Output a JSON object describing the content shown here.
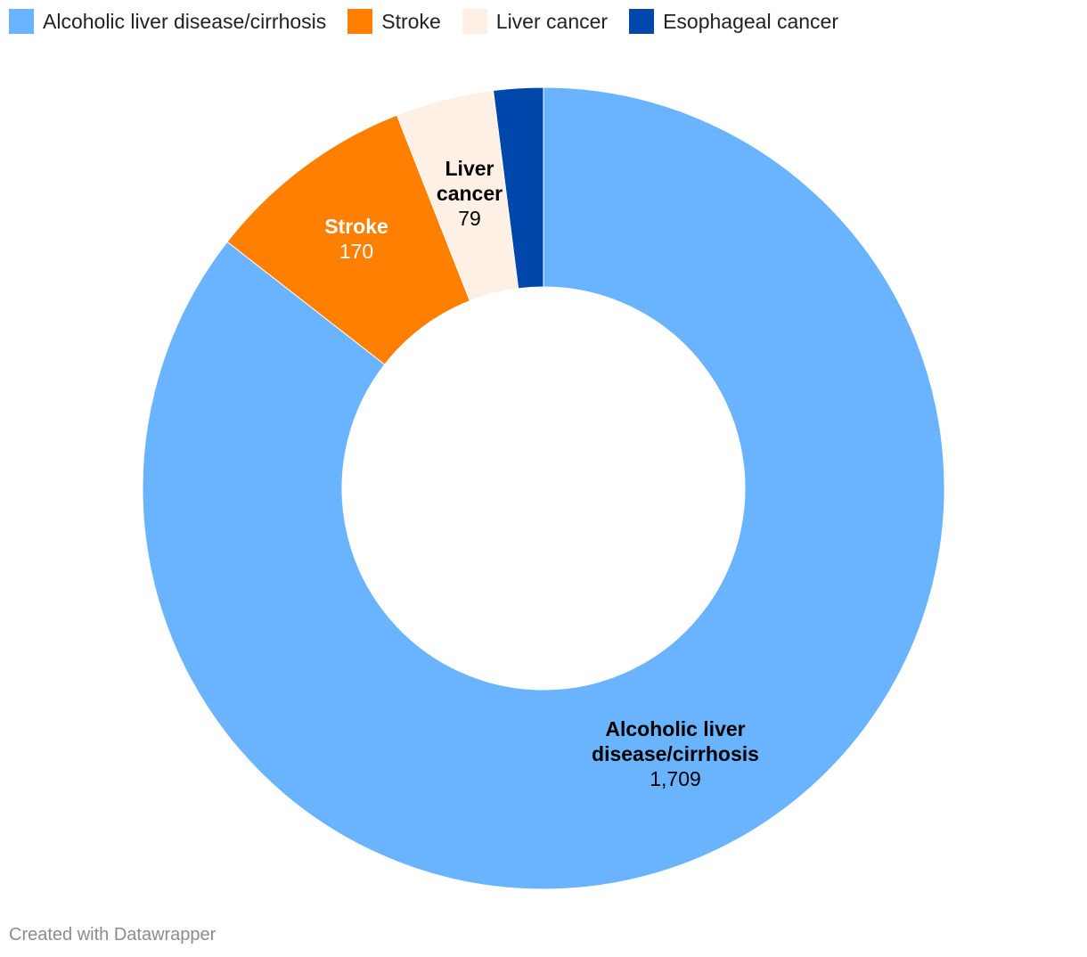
{
  "chart_data": {
    "type": "pie",
    "variant": "donut",
    "categories": [
      "Alcoholic liver disease/cirrhosis",
      "Stroke",
      "Liver cancer",
      "Esophageal cancer"
    ],
    "values": [
      1709,
      170,
      79,
      40
    ],
    "value_labels": [
      "1,709",
      "170",
      "79",
      ""
    ],
    "label_names": [
      [
        "Alcoholic liver",
        "disease/cirrhosis"
      ],
      [
        "Stroke"
      ],
      [
        "Liver",
        "cancer"
      ],
      []
    ],
    "colors": [
      "#6ab4ff",
      "#ff7f00",
      "#fff0e6",
      "#0047ab"
    ],
    "label_colors": [
      "#000000",
      "#ffffff",
      "#000000",
      "#ffffff"
    ],
    "legend_position": "top-left",
    "legend": [
      {
        "label": "Alcoholic liver disease/cirrhosis",
        "color": "#6ab4ff"
      },
      {
        "label": "Stroke",
        "color": "#ff7f00"
      },
      {
        "label": "Liver cancer",
        "color": "#fff0e6"
      },
      {
        "label": "Esophageal cancer",
        "color": "#0047ab"
      }
    ]
  },
  "footer": "Created with Datawrapper"
}
